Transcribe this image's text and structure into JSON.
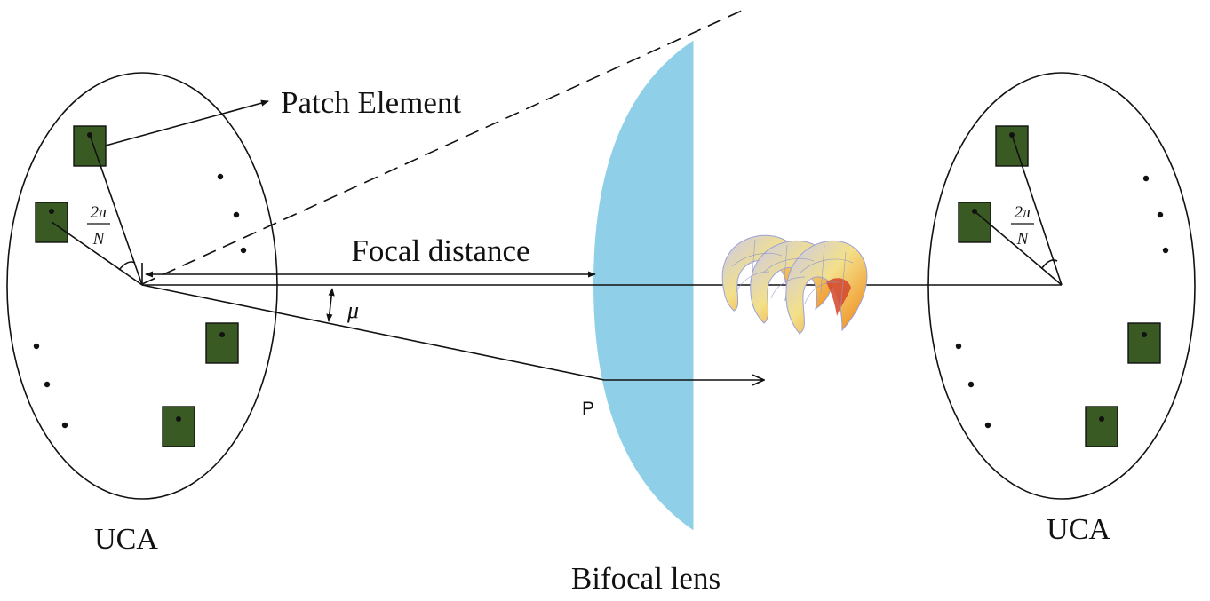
{
  "labels": {
    "patch_element": "Patch Element",
    "focal_distance": "Focal distance",
    "mu": "μ",
    "point_p": "P",
    "uca_left": "UCA",
    "uca_right": "UCA",
    "bifocal_lens": "Bifocal lens",
    "angle_num": "2π",
    "angle_den": "N"
  },
  "colors": {
    "patch_fill": "#3a5a24",
    "lens_fill": "#8fd0e8",
    "line": "#111111"
  },
  "icons": [
    "oam-vortex-beam-icon"
  ]
}
